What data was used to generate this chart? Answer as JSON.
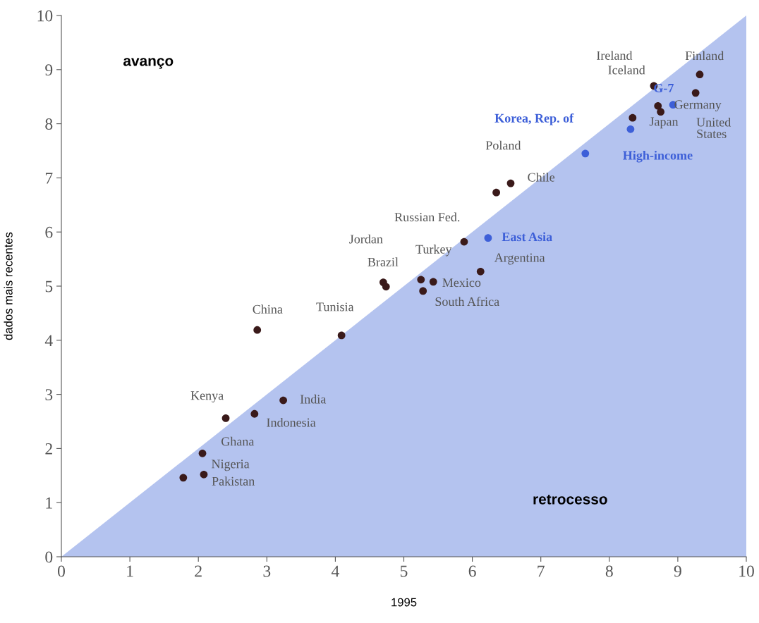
{
  "chart_data": {
    "type": "scatter",
    "xlabel": "1995",
    "ylabel": "dados mais recentes",
    "xlim": [
      0,
      10
    ],
    "ylim": [
      0,
      10
    ],
    "xticks": [
      0,
      1,
      2,
      3,
      4,
      5,
      6,
      7,
      8,
      9,
      10
    ],
    "yticks": [
      0,
      1,
      2,
      3,
      4,
      5,
      6,
      7,
      8,
      9,
      10
    ],
    "grid": false,
    "legend": false,
    "series": [
      {
        "type": "area",
        "color": "#b4c3ef",
        "x": [
          0,
          10
        ],
        "values": [
          0,
          10
        ]
      },
      {
        "color": "#3a1a1a",
        "marker": "circle",
        "x": [
          1.78,
          2.08,
          2.06,
          2.4,
          2.82,
          3.24,
          2.86,
          4.09,
          4.7,
          4.74,
          5.25,
          5.43,
          5.28,
          5.88,
          6.12,
          6.35,
          6.56,
          8.34,
          8.65,
          8.71,
          8.75,
          9.26,
          9.32
        ],
        "values": [
          1.46,
          1.52,
          1.91,
          2.56,
          2.64,
          2.89,
          4.19,
          4.09,
          5.07,
          4.99,
          5.12,
          5.08,
          4.91,
          5.82,
          5.27,
          6.73,
          6.9,
          8.11,
          8.7,
          8.33,
          8.22,
          8.57,
          8.91
        ],
        "value_labels": [
          null,
          "Pakistan",
          "Nigeria",
          "Kenya",
          "Indonesia",
          "India",
          "China",
          "Tunisia",
          "Jordan",
          "Brazil",
          null,
          "Mexico",
          "South Africa",
          "Russian Fed.",
          "Argentina",
          "Poland",
          "Chile",
          "Japan",
          "Iceland",
          null,
          null,
          "Germany",
          "Finland"
        ]
      },
      {
        "color": "#3d5fd8",
        "marker": "circle",
        "x": [
          6.23,
          7.65,
          8.31,
          8.93
        ],
        "values": [
          5.89,
          7.45,
          7.9,
          8.35
        ],
        "value_labels": [
          "East Asia",
          "Korea, Rep. of",
          "High-income",
          "G-7"
        ]
      }
    ],
    "annotations": [
      "avanço",
      "retrocesso",
      "Ghana",
      "Ireland",
      "Turkey",
      "United\nStates"
    ]
  }
}
